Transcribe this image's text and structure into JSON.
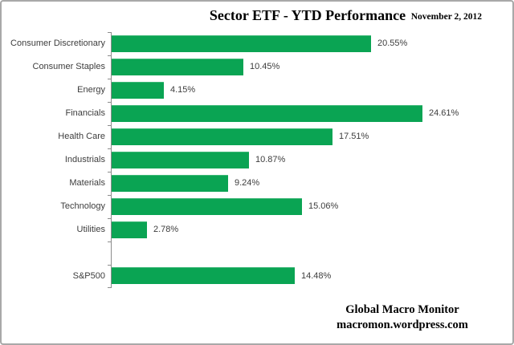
{
  "header": {
    "title": "Sector ETF - YTD Performance",
    "date": "November 2, 2012"
  },
  "footer": {
    "line1": "Global Macro Monitor",
    "line2": "macromon.wordpress.com"
  },
  "colors": {
    "bar": "#0aa453",
    "axis": "#8c8c8c",
    "label_text": "#3d3d3d",
    "frame_border": "#a8a8a8",
    "background": "#ffffff"
  },
  "chart_data": {
    "type": "bar",
    "orientation": "horizontal",
    "title": "Sector ETF - YTD Performance",
    "categories": [
      "Consumer Discretionary",
      "Consumer Staples",
      "Energy",
      "Financials",
      "Health Care",
      "Industrials",
      "Materials",
      "Technology",
      "Utilities",
      "",
      "S&P500"
    ],
    "values": [
      20.55,
      10.45,
      4.15,
      24.61,
      17.51,
      10.87,
      9.24,
      15.06,
      2.78,
      null,
      14.48
    ],
    "value_labels": [
      "20.55%",
      "10.45%",
      "4.15%",
      "24.61%",
      "17.51%",
      "10.87%",
      "9.24%",
      "15.06%",
      "2.78%",
      "",
      "14.48%"
    ],
    "xlabel": "",
    "ylabel": "",
    "xlim": [
      0,
      26
    ],
    "grid": false,
    "legend": false
  }
}
